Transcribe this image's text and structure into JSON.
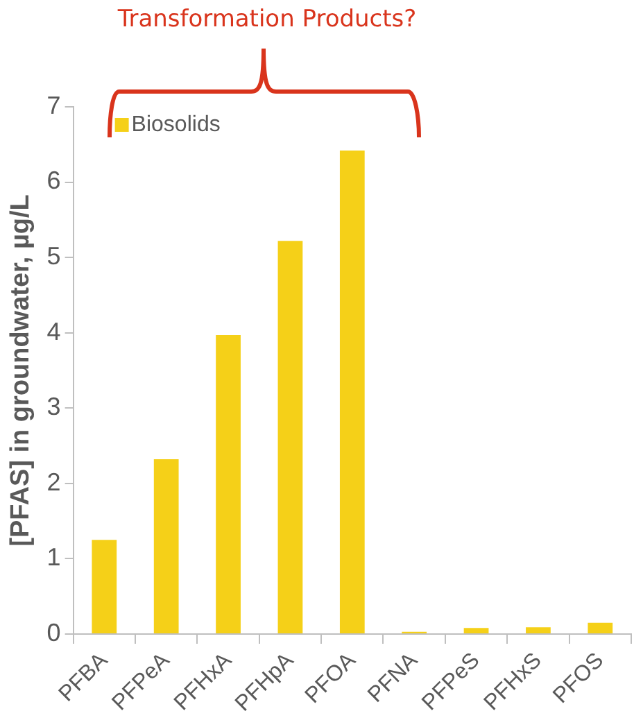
{
  "chart_data": {
    "type": "bar",
    "annotations": [
      "Transformation Products?"
    ],
    "ylabel": "[PFAS] in groundwater, µg/L",
    "categories": [
      "PFBA",
      "PFPeA",
      "PFHxA",
      "PFHpA",
      "PFOA",
      "PFNA",
      "PFPeS",
      "PFHxS",
      "PFOS"
    ],
    "series": [
      {
        "name": "Biosolids",
        "color": "#f5d018",
        "values": [
          1.25,
          2.32,
          3.97,
          5.22,
          6.42,
          0.03,
          0.08,
          0.09,
          0.15
        ]
      }
    ],
    "ylim": [
      0,
      7
    ],
    "yticks": [
      0,
      1,
      2,
      3,
      4,
      5,
      6,
      7
    ],
    "grid": false,
    "legend": "top left"
  }
}
